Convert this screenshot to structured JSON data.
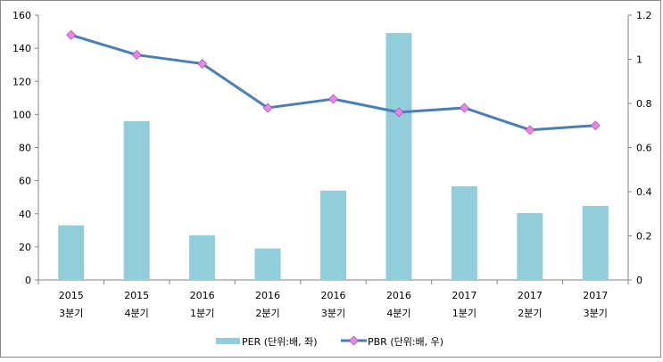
{
  "chart_data": {
    "type": "bar+line",
    "categories": [
      [
        "2015",
        "3분기"
      ],
      [
        "2015",
        "4분기"
      ],
      [
        "2016",
        "1분기"
      ],
      [
        "2016",
        "2분기"
      ],
      [
        "2016",
        "3분기"
      ],
      [
        "2016",
        "4분기"
      ],
      [
        "2017",
        "1분기"
      ],
      [
        "2017",
        "2분기"
      ],
      [
        "2017",
        "3분기"
      ]
    ],
    "series": [
      {
        "name": "PER (단위:배, 좌)",
        "type": "bar",
        "axis": "left",
        "color": "#92CDDC",
        "values": [
          33,
          96,
          27,
          19,
          54,
          149.2,
          56.6,
          40.4,
          44.7
        ]
      },
      {
        "name": "PBR (단위:배, 우)",
        "type": "line",
        "axis": "right",
        "color": "#4A7EBB",
        "marker_color": "#EE82EE",
        "values": [
          1.11,
          1.02,
          0.98,
          0.78,
          0.82,
          0.76,
          0.78,
          0.68,
          0.7
        ]
      }
    ],
    "left_axis": {
      "ylim": [
        0,
        160
      ],
      "ticks": [
        "0",
        "20",
        "40",
        "60",
        "80",
        "100",
        "120",
        "140",
        "160"
      ]
    },
    "right_axis": {
      "ylim": [
        0,
        1.2
      ],
      "ticks": [
        "0",
        "0.2",
        "0.4",
        "0.6",
        "0.8",
        "1",
        "1.2"
      ]
    },
    "legend": "bottom",
    "grid": false
  }
}
